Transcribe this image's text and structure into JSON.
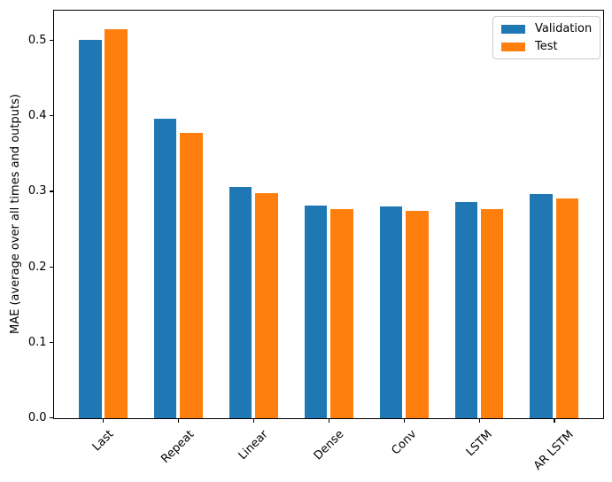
{
  "chart_data": {
    "type": "bar",
    "title": "",
    "xlabel": "",
    "ylabel": "MAE (average over all times and outputs)",
    "categories": [
      "Last",
      "Repeat",
      "Linear",
      "Dense",
      "Conv",
      "LSTM",
      "AR LSTM"
    ],
    "series": [
      {
        "name": "Validation",
        "color": "#1f77b4",
        "values": [
          0.501,
          0.396,
          0.306,
          0.281,
          0.28,
          0.286,
          0.297
        ]
      },
      {
        "name": "Test",
        "color": "#ff7f0e",
        "values": [
          0.515,
          0.377,
          0.298,
          0.276,
          0.274,
          0.276,
          0.291
        ]
      }
    ],
    "ylim": [
      0,
      0.54
    ],
    "yticks": [
      0.0,
      0.1,
      0.2,
      0.3,
      0.4,
      0.5
    ],
    "ytick_labels": [
      "0.0",
      "0.1",
      "0.2",
      "0.3",
      "0.4",
      "0.5"
    ],
    "xtick_rotation": 45,
    "grid": false,
    "legend": {
      "position": "upper right",
      "entries": [
        "Validation",
        "Test"
      ]
    }
  }
}
